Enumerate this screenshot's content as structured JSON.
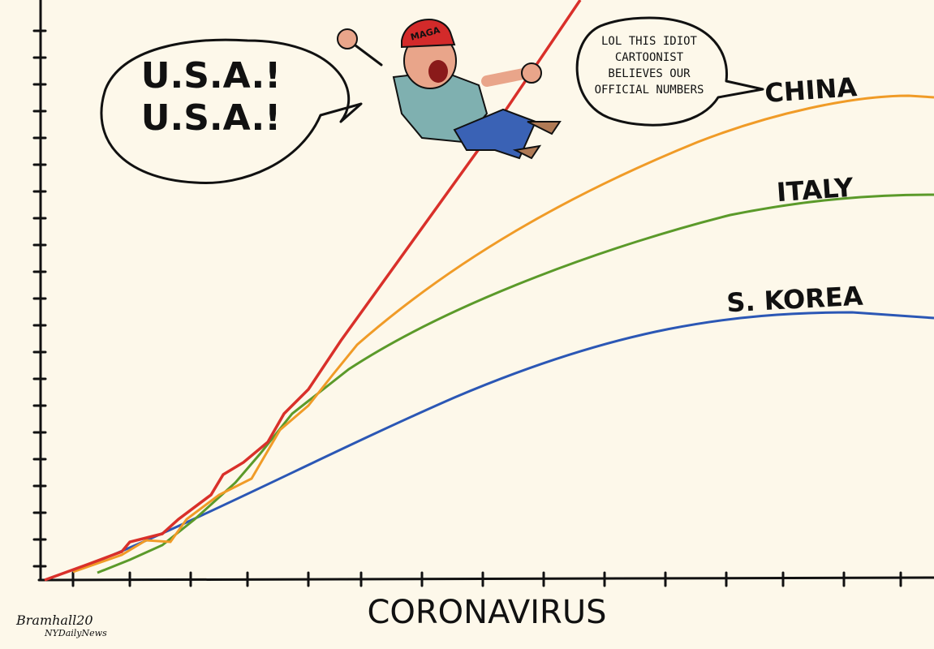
{
  "cartoon": {
    "speech_bubble": [
      "U.S.A.!",
      "U.S.A.!"
    ],
    "thought_bubble": [
      "LOL THIS IDIOT",
      "CARTOONIST",
      "BELIEVES OUR",
      "OFFICIAL NUMBERS"
    ],
    "curve_labels": [
      "CHINA",
      "ITALY",
      "S. KOREA"
    ],
    "cap": "MAGA",
    "x_axis_label": "CORONAVIRUS",
    "signature": "Bramhall20",
    "publication": "NYDailyNews"
  }
}
